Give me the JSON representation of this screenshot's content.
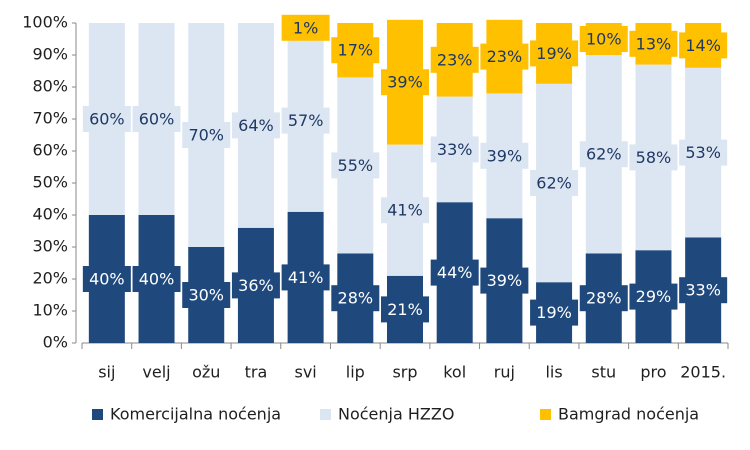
{
  "chart_data": {
    "type": "stacked_bar",
    "categories": [
      "sij",
      "velj",
      "ožu",
      "tra",
      "svi",
      "lip",
      "srp",
      "kol",
      "ruj",
      "lis",
      "stu",
      "pro",
      "2015."
    ],
    "series": [
      {
        "name": "Komercijalna noćenja",
        "color": "#1f497d",
        "values": [
          40,
          40,
          30,
          36,
          41,
          28,
          21,
          44,
          39,
          19,
          28,
          29,
          33
        ],
        "value_labels": [
          "40%",
          "40%",
          "30%",
          "36%",
          "41%",
          "28%",
          "21%",
          "44%",
          "39%",
          "19%",
          "28%",
          "29%",
          "33%"
        ]
      },
      {
        "name": "Noćenja HZZO",
        "color": "#dce6f2",
        "values": [
          60,
          60,
          70,
          64,
          57,
          55,
          41,
          33,
          39,
          62,
          62,
          58,
          53
        ],
        "value_labels": [
          "60%",
          "60%",
          "70%",
          "64%",
          "57%",
          "55%",
          "41%",
          "33%",
          "39%",
          "62%",
          "62%",
          "58%",
          "53%"
        ]
      },
      {
        "name": "Bamgrad noćenja",
        "color": "#ffc000",
        "values": [
          null,
          null,
          null,
          null,
          1,
          17,
          39,
          23,
          23,
          19,
          10,
          13,
          14
        ],
        "value_labels": [
          null,
          null,
          null,
          null,
          "1%",
          "17%",
          "39%",
          "23%",
          "23%",
          "19%",
          "10%",
          "13%",
          "14%"
        ]
      }
    ],
    "ylim": [
      0,
      100
    ],
    "yticks": [
      {
        "value": 0,
        "label": "0%"
      },
      {
        "value": 10,
        "label": "10%"
      },
      {
        "value": 20,
        "label": "20%"
      },
      {
        "value": 30,
        "label": "30%"
      },
      {
        "value": 40,
        "label": "40%"
      },
      {
        "value": 50,
        "label": "50%"
      },
      {
        "value": 60,
        "label": "60%"
      },
      {
        "value": 70,
        "label": "70%"
      },
      {
        "value": 80,
        "label": "80%"
      },
      {
        "value": 90,
        "label": "90%"
      },
      {
        "value": 100,
        "label": "100%"
      }
    ],
    "legend": "bottom"
  }
}
